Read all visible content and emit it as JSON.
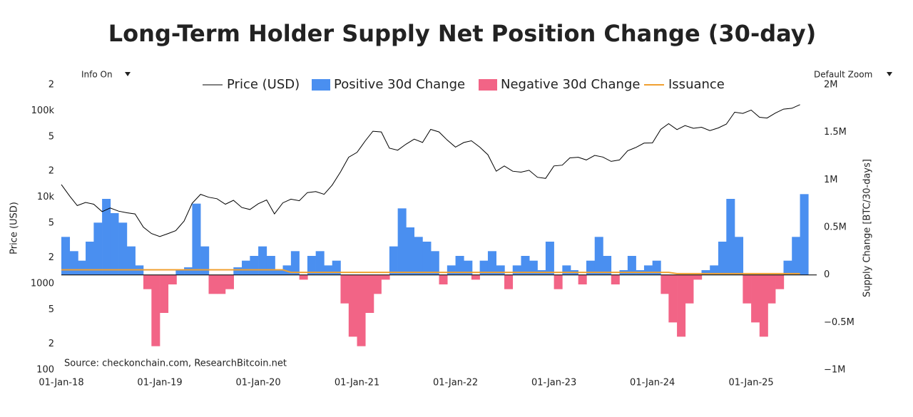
{
  "chart_data": {
    "type": "combo",
    "title": "Long-Term Holder Supply Net Position Change (30-day)",
    "controls": {
      "info": "Info On",
      "zoom": "Default Zoom"
    },
    "source": "Source: checkonchain.com, ResearchBitcoin.net",
    "ylabel": "Price (USD)",
    "y2label": "Supply Change [BTC/30-days]",
    "ylog": true,
    "legend": "top",
    "xlim": [
      "2018-01-01",
      "2025-09-01"
    ],
    "xticks": [
      {
        "value": "2018-01-01",
        "label": "01-Jan-18"
      },
      {
        "value": "2019-01-01",
        "label": "01-Jan-19"
      },
      {
        "value": "2020-01-01",
        "label": "01-Jan-20"
      },
      {
        "value": "2021-01-01",
        "label": "01-Jan-21"
      },
      {
        "value": "2022-01-01",
        "label": "01-Jan-22"
      },
      {
        "value": "2023-01-01",
        "label": "01-Jan-23"
      },
      {
        "value": "2024-01-01",
        "label": "01-Jan-24"
      },
      {
        "value": "2025-01-01",
        "label": "01-Jan-25"
      }
    ],
    "ylim": [
      100,
      200000
    ],
    "yticks": [
      100,
      {
        "value": 200,
        "label": "2"
      },
      {
        "value": 500,
        "label": "5"
      },
      1000,
      {
        "value": 2000,
        "label": "2"
      },
      {
        "value": 5000,
        "label": "5"
      },
      {
        "value": 10000,
        "label": "10k"
      },
      {
        "value": 20000,
        "label": "2"
      },
      {
        "value": 50000,
        "label": "5"
      },
      {
        "value": 100000,
        "label": "100k"
      },
      {
        "value": 200000,
        "label": "2"
      }
    ],
    "y2lim": [
      -1000000,
      2000000
    ],
    "y2ticks": [
      {
        "value": -1000000,
        "label": "−1M"
      },
      {
        "value": -500000,
        "label": "−0.5M"
      },
      0,
      {
        "value": 500000,
        "label": "0.5M"
      },
      {
        "value": 1000000,
        "label": "1M"
      },
      {
        "value": 1500000,
        "label": "1.5M"
      },
      {
        "value": 2000000,
        "label": "2M"
      }
    ],
    "x": [
      "2018-01-01",
      "2018-02-01",
      "2018-03-01",
      "2018-04-01",
      "2018-05-01",
      "2018-06-01",
      "2018-07-01",
      "2018-08-01",
      "2018-09-01",
      "2018-10-01",
      "2018-11-01",
      "2018-12-01",
      "2019-01-01",
      "2019-02-01",
      "2019-03-01",
      "2019-04-01",
      "2019-05-01",
      "2019-06-01",
      "2019-07-01",
      "2019-08-01",
      "2019-09-01",
      "2019-10-01",
      "2019-11-01",
      "2019-12-01",
      "2020-01-01",
      "2020-02-01",
      "2020-03-01",
      "2020-04-01",
      "2020-05-01",
      "2020-06-01",
      "2020-07-01",
      "2020-08-01",
      "2020-09-01",
      "2020-10-01",
      "2020-11-01",
      "2020-12-01",
      "2021-01-01",
      "2021-02-01",
      "2021-03-01",
      "2021-04-01",
      "2021-05-01",
      "2021-06-01",
      "2021-07-01",
      "2021-08-01",
      "2021-09-01",
      "2021-10-01",
      "2021-11-01",
      "2021-12-01",
      "2022-01-01",
      "2022-02-01",
      "2022-03-01",
      "2022-04-01",
      "2022-05-01",
      "2022-06-01",
      "2022-07-01",
      "2022-08-01",
      "2022-09-01",
      "2022-10-01",
      "2022-11-01",
      "2022-12-01",
      "2023-01-01",
      "2023-02-01",
      "2023-03-01",
      "2023-04-01",
      "2023-05-01",
      "2023-06-01",
      "2023-07-01",
      "2023-08-01",
      "2023-09-01",
      "2023-10-01",
      "2023-11-01",
      "2023-12-01",
      "2024-01-01",
      "2024-02-01",
      "2024-03-01",
      "2024-04-01",
      "2024-05-01",
      "2024-06-01",
      "2024-07-01",
      "2024-08-01",
      "2024-09-01",
      "2024-10-01",
      "2024-11-01",
      "2024-12-01",
      "2025-01-01",
      "2025-02-01",
      "2025-03-01",
      "2025-04-01",
      "2025-05-01",
      "2025-06-01",
      "2025-07-01"
    ],
    "series": [
      {
        "name": "Price (USD)",
        "type": "line",
        "axis": "y",
        "color": "#000000",
        "values": [
          14000,
          10300,
          8000,
          8700,
          8300,
          6800,
          7500,
          6900,
          6600,
          6400,
          4500,
          3800,
          3500,
          3800,
          4100,
          5300,
          8500,
          10800,
          10000,
          9600,
          8300,
          9200,
          7600,
          7200,
          8400,
          9300,
          6400,
          8600,
          9500,
          9100,
          11300,
          11600,
          10800,
          13800,
          19700,
          29000,
          33000,
          45000,
          58000,
          57000,
          37000,
          35000,
          41000,
          47000,
          43000,
          61000,
          57000,
          46000,
          38000,
          43000,
          45000,
          38000,
          31000,
          20000,
          23000,
          20000,
          19500,
          20500,
          17000,
          16500,
          23000,
          23500,
          28500,
          29000,
          27000,
          30500,
          29200,
          26000,
          27000,
          34500,
          37700,
          42300,
          42500,
          61000,
          71000,
          60600,
          67500,
          62700,
          64600,
          59000,
          63300,
          70200,
          96400,
          93400,
          102000,
          84300,
          82500,
          94200,
          104600,
          107100,
          118000
        ]
      },
      {
        "name": "Positive 30d Change",
        "type": "bar",
        "axis": "y2",
        "color": "#4a8ff0",
        "values": [
          400000,
          250000,
          150000,
          350000,
          550000,
          800000,
          650000,
          550000,
          300000,
          100000,
          null,
          null,
          null,
          null,
          50000,
          80000,
          750000,
          300000,
          null,
          null,
          null,
          80000,
          150000,
          200000,
          300000,
          200000,
          50000,
          100000,
          250000,
          null,
          200000,
          250000,
          100000,
          150000,
          null,
          null,
          null,
          null,
          null,
          null,
          300000,
          700000,
          500000,
          400000,
          350000,
          250000,
          null,
          100000,
          200000,
          150000,
          null,
          150000,
          250000,
          100000,
          null,
          100000,
          200000,
          150000,
          50000,
          350000,
          null,
          100000,
          50000,
          null,
          150000,
          400000,
          200000,
          null,
          50000,
          200000,
          50000,
          100000,
          150000,
          null,
          null,
          null,
          null,
          null,
          50000,
          100000,
          350000,
          800000,
          400000,
          null,
          null,
          null,
          null,
          null,
          150000,
          400000,
          850000
        ]
      },
      {
        "name": "Negative 30d Change",
        "type": "bar",
        "axis": "y2",
        "color": "#f26486",
        "values": [
          null,
          null,
          null,
          null,
          null,
          null,
          null,
          null,
          null,
          null,
          -150000,
          -750000,
          -400000,
          -100000,
          null,
          null,
          null,
          null,
          -200000,
          -200000,
          -150000,
          null,
          null,
          null,
          null,
          null,
          null,
          null,
          null,
          -50000,
          null,
          null,
          null,
          null,
          -300000,
          -650000,
          -750000,
          -400000,
          -200000,
          -50000,
          null,
          null,
          null,
          null,
          null,
          null,
          -100000,
          null,
          null,
          null,
          -50000,
          null,
          null,
          null,
          -150000,
          null,
          null,
          null,
          null,
          null,
          -150000,
          null,
          null,
          -100000,
          null,
          null,
          null,
          -100000,
          null,
          null,
          null,
          null,
          null,
          -200000,
          -500000,
          -650000,
          -300000,
          -50000,
          null,
          null,
          null,
          null,
          null,
          -300000,
          -500000,
          -650000,
          -300000,
          -150000,
          null,
          null,
          null
        ]
      },
      {
        "name": "Issuance",
        "type": "line",
        "axis": "y2",
        "color": "#f0a030",
        "values": [
          54000,
          54000,
          54000,
          54000,
          54000,
          54000,
          54000,
          54000,
          54000,
          54000,
          54000,
          54000,
          54000,
          54000,
          54000,
          54000,
          54000,
          54000,
          54000,
          54000,
          54000,
          54000,
          54000,
          54000,
          54000,
          54000,
          54000,
          54000,
          27000,
          27000,
          27000,
          27000,
          27000,
          27000,
          27000,
          27000,
          27000,
          27000,
          27000,
          27000,
          27000,
          27000,
          27000,
          27000,
          27000,
          27000,
          27000,
          27000,
          27000,
          27000,
          27000,
          27000,
          27000,
          27000,
          27000,
          27000,
          27000,
          27000,
          27000,
          27000,
          27000,
          27000,
          27000,
          27000,
          27000,
          27000,
          27000,
          27000,
          27000,
          27000,
          27000,
          27000,
          27000,
          27000,
          27000,
          13500,
          13500,
          13500,
          13500,
          13500,
          13500,
          13500,
          13500,
          13500,
          13500,
          13500,
          13500,
          13500,
          13500,
          13500,
          13500
        ]
      }
    ]
  }
}
